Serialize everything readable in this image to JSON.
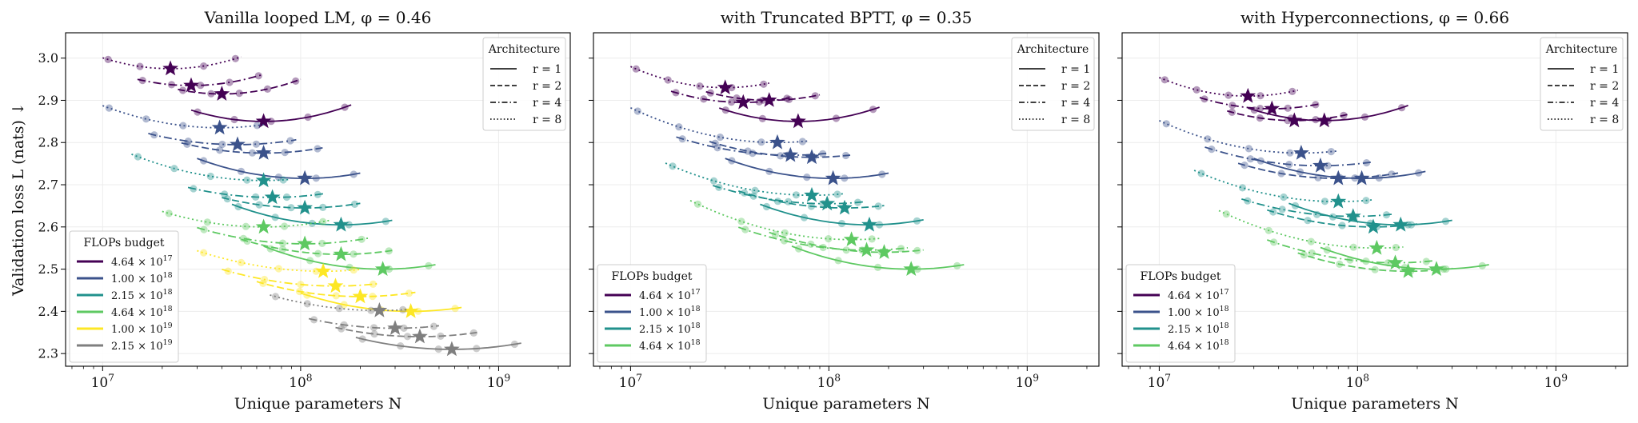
{
  "chart_data": {
    "type": "scatter",
    "ylabel": "Validation loss L (nats) ↓",
    "xlabel": "Unique parameters N",
    "xscale": "log",
    "xlim": [
      6500000,
      2300000000
    ],
    "ylim": [
      2.27,
      3.06
    ],
    "xticks": [
      {
        "value": 10000000,
        "base": "10",
        "exp": "7"
      },
      {
        "value": 100000000,
        "base": "10",
        "exp": "8"
      },
      {
        "value": 1000000000,
        "base": "10",
        "exp": "9"
      }
    ],
    "yticks": [
      2.3,
      2.4,
      2.5,
      2.6,
      2.7,
      2.8,
      2.9,
      3.0
    ],
    "ytick_labels": [
      "2.3",
      "2.4",
      "2.5",
      "2.6",
      "2.7",
      "2.8",
      "2.9",
      "3.0"
    ],
    "budget_colors": [
      "#440154",
      "#3b528b",
      "#21918c",
      "#5ec962",
      "#fde725",
      "#7f7f7f"
    ],
    "architecture_legend": {
      "title": "Architecture",
      "entries": [
        {
          "label": "r = 1",
          "style": "solid"
        },
        {
          "label": "r = 2",
          "style": "dashed"
        },
        {
          "label": "r = 4",
          "style": "dashdot"
        },
        {
          "label": "r = 8",
          "style": "dotted"
        }
      ]
    },
    "budget_legend_title": "FLOPs budget",
    "budget_labels": [
      {
        "mant": "4.64",
        "exp": "17"
      },
      {
        "mant": "1.00",
        "exp": "18"
      },
      {
        "mant": "2.15",
        "exp": "18"
      },
      {
        "mant": "4.64",
        "exp": "18"
      },
      {
        "mant": "1.00",
        "exp": "19"
      },
      {
        "mant": "2.15",
        "exp": "19"
      }
    ],
    "panels": [
      {
        "title": "Vanilla looped LM, φ = 0.46",
        "budget_count": 6,
        "series": [
          {
            "budget": 0,
            "r": 1,
            "x0": 28000000.0,
            "x1": 180000000.0,
            "opt_x": 65000000.0,
            "opt_y": 2.85,
            "k": 0.2
          },
          {
            "budget": 0,
            "r": 2,
            "x0": 24000000.0,
            "x1": 100000000.0,
            "opt_x": 40000000.0,
            "opt_y": 2.915,
            "k": 0.22
          },
          {
            "budget": 0,
            "r": 4,
            "x0": 15000000.0,
            "x1": 65000000.0,
            "opt_x": 28000000.0,
            "opt_y": 2.935,
            "k": 0.2
          },
          {
            "budget": 0,
            "r": 8,
            "x0": 10000000.0,
            "x1": 50000000.0,
            "opt_x": 22000000.0,
            "opt_y": 2.975,
            "k": 0.22
          },
          {
            "budget": 1,
            "r": 1,
            "x0": 30000000.0,
            "x1": 200000000.0,
            "opt_x": 105000000.0,
            "opt_y": 2.715,
            "k": 0.16
          },
          {
            "budget": 1,
            "r": 2,
            "x0": 25000000.0,
            "x1": 130000000.0,
            "opt_x": 65000000.0,
            "opt_y": 2.775,
            "k": 0.14
          },
          {
            "budget": 1,
            "r": 4,
            "x0": 17000000.0,
            "x1": 95000000.0,
            "opt_x": 48000000.0,
            "opt_y": 2.795,
            "k": 0.13
          },
          {
            "budget": 1,
            "r": 8,
            "x0": 10000000.0,
            "x1": 65000000.0,
            "opt_x": 39000000.0,
            "opt_y": 2.835,
            "k": 0.15
          },
          {
            "budget": 2,
            "r": 1,
            "x0": 45000000.0,
            "x1": 290000000.0,
            "opt_x": 160000000.0,
            "opt_y": 2.605,
            "k": 0.16
          },
          {
            "budget": 2,
            "r": 2,
            "x0": 40000000.0,
            "x1": 200000000.0,
            "opt_x": 105000000.0,
            "opt_y": 2.645,
            "k": 0.14
          },
          {
            "budget": 2,
            "r": 4,
            "x0": 27000000.0,
            "x1": 130000000.0,
            "opt_x": 72000000.0,
            "opt_y": 2.67,
            "k": 0.13
          },
          {
            "budget": 2,
            "r": 8,
            "x0": 14000000.0,
            "x1": 88000000.0,
            "opt_x": 65000000.0,
            "opt_y": 2.71,
            "k": 0.14
          },
          {
            "budget": 3,
            "r": 1,
            "x0": 65000000.0,
            "x1": 480000000.0,
            "opt_x": 260000000.0,
            "opt_y": 2.5,
            "k": 0.15
          },
          {
            "budget": 3,
            "r": 2,
            "x0": 50000000.0,
            "x1": 300000000.0,
            "opt_x": 160000000.0,
            "opt_y": 2.535,
            "k": 0.14
          },
          {
            "budget": 3,
            "r": 4,
            "x0": 30000000.0,
            "x1": 220000000.0,
            "opt_x": 105000000.0,
            "opt_y": 2.56,
            "k": 0.13
          },
          {
            "budget": 3,
            "r": 8,
            "x0": 20000000.0,
            "x1": 140000000.0,
            "opt_x": 65000000.0,
            "opt_y": 2.6,
            "k": 0.14
          },
          {
            "budget": 4,
            "r": 1,
            "x0": 100000000.0,
            "x1": 650000000.0,
            "opt_x": 360000000.0,
            "opt_y": 2.4,
            "k": 0.14
          },
          {
            "budget": 4,
            "r": 2,
            "x0": 60000000.0,
            "x1": 380000000.0,
            "opt_x": 200000000.0,
            "opt_y": 2.435,
            "k": 0.13
          },
          {
            "budget": 4,
            "r": 4,
            "x0": 40000000.0,
            "x1": 250000000.0,
            "opt_x": 150000000.0,
            "opt_y": 2.46,
            "k": 0.12
          },
          {
            "budget": 4,
            "r": 8,
            "x0": 30000000.0,
            "x1": 200000000.0,
            "opt_x": 130000000.0,
            "opt_y": 2.495,
            "k": 0.12
          },
          {
            "budget": 5,
            "r": 1,
            "x0": 190000000.0,
            "x1": 1300000000.0,
            "opt_x": 580000000.0,
            "opt_y": 2.31,
            "k": 0.12
          },
          {
            "budget": 5,
            "r": 2,
            "x0": 150000000.0,
            "x1": 800000000.0,
            "opt_x": 400000000.0,
            "opt_y": 2.34,
            "k": 0.12
          },
          {
            "budget": 5,
            "r": 4,
            "x0": 110000000.0,
            "x1": 500000000.0,
            "opt_x": 300000000.0,
            "opt_y": 2.36,
            "k": 0.12
          },
          {
            "budget": 5,
            "r": 8,
            "x0": 70000000.0,
            "x1": 350000000.0,
            "opt_x": 250000000.0,
            "opt_y": 2.402,
            "k": 0.12
          }
        ]
      },
      {
        "title": "with Truncated BPTT, φ = 0.35",
        "budget_count": 4,
        "series": [
          {
            "budget": 0,
            "r": 1,
            "x0": 28000000.0,
            "x1": 180000000.0,
            "opt_x": 70000000.0,
            "opt_y": 2.85,
            "k": 0.2
          },
          {
            "budget": 0,
            "r": 2,
            "x0": 24000000.0,
            "x1": 90000000.0,
            "opt_x": 50000000.0,
            "opt_y": 2.9,
            "k": 0.2
          },
          {
            "budget": 0,
            "r": 4,
            "x0": 16000000.0,
            "x1": 65000000.0,
            "opt_x": 37000000.0,
            "opt_y": 2.895,
            "k": 0.2
          },
          {
            "budget": 0,
            "r": 8,
            "x0": 10000000.0,
            "x1": 50000000.0,
            "opt_x": 30000000.0,
            "opt_y": 2.93,
            "k": 0.22
          },
          {
            "budget": 1,
            "r": 1,
            "x0": 30000000.0,
            "x1": 200000000.0,
            "opt_x": 105000000.0,
            "opt_y": 2.715,
            "k": 0.16
          },
          {
            "budget": 1,
            "r": 2,
            "x0": 25000000.0,
            "x1": 130000000.0,
            "opt_x": 82000000.0,
            "opt_y": 2.765,
            "k": 0.14
          },
          {
            "budget": 1,
            "r": 4,
            "x0": 17000000.0,
            "x1": 100000000.0,
            "opt_x": 64000000.0,
            "opt_y": 2.77,
            "k": 0.13
          },
          {
            "budget": 1,
            "r": 8,
            "x0": 10000000.0,
            "x1": 80000000.0,
            "opt_x": 55000000.0,
            "opt_y": 2.8,
            "k": 0.15
          },
          {
            "budget": 2,
            "r": 1,
            "x0": 45000000.0,
            "x1": 300000000.0,
            "opt_x": 160000000.0,
            "opt_y": 2.605,
            "k": 0.16
          },
          {
            "budget": 2,
            "r": 2,
            "x0": 35000000.0,
            "x1": 190000000.0,
            "opt_x": 120000000.0,
            "opt_y": 2.645,
            "k": 0.14
          },
          {
            "budget": 2,
            "r": 4,
            "x0": 26000000.0,
            "x1": 150000000.0,
            "opt_x": 98000000.0,
            "opt_y": 2.655,
            "k": 0.13
          },
          {
            "budget": 2,
            "r": 8,
            "x0": 15000000.0,
            "x1": 120000000.0,
            "opt_x": 82000000.0,
            "opt_y": 2.675,
            "k": 0.14
          },
          {
            "budget": 3,
            "r": 1,
            "x0": 65000000.0,
            "x1": 480000000.0,
            "opt_x": 260000000.0,
            "opt_y": 2.5,
            "k": 0.15
          },
          {
            "budget": 3,
            "r": 2,
            "x0": 50000000.0,
            "x1": 300000000.0,
            "opt_x": 190000000.0,
            "opt_y": 2.54,
            "k": 0.14
          },
          {
            "budget": 3,
            "r": 4,
            "x0": 35000000.0,
            "x1": 250000000.0,
            "opt_x": 155000000.0,
            "opt_y": 2.545,
            "k": 0.13
          },
          {
            "budget": 3,
            "r": 8,
            "x0": 20000000.0,
            "x1": 180000000.0,
            "opt_x": 130000000.0,
            "opt_y": 2.57,
            "k": 0.14
          }
        ]
      },
      {
        "title": "with Hyperconnections, φ = 0.66",
        "budget_count": 4,
        "series": [
          {
            "budget": 0,
            "r": 1,
            "x0": 28000000.0,
            "x1": 180000000.0,
            "opt_x": 68000000.0,
            "opt_y": 2.852,
            "k": 0.2
          },
          {
            "budget": 0,
            "r": 2,
            "x0": 22000000.0,
            "x1": 90000000.0,
            "opt_x": 48000000.0,
            "opt_y": 2.852,
            "k": 0.2
          },
          {
            "budget": 0,
            "r": 4,
            "x0": 16000000.0,
            "x1": 65000000.0,
            "opt_x": 37000000.0,
            "opt_y": 2.88,
            "k": 0.2
          },
          {
            "budget": 0,
            "r": 8,
            "x0": 10000000.0,
            "x1": 50000000.0,
            "opt_x": 28000000.0,
            "opt_y": 2.91,
            "k": 0.22
          },
          {
            "budget": 1,
            "r": 1,
            "x0": 30000000.0,
            "x1": 220000000.0,
            "opt_x": 105000000.0,
            "opt_y": 2.715,
            "k": 0.16
          },
          {
            "budget": 1,
            "r": 2,
            "x0": 25000000.0,
            "x1": 160000000.0,
            "opt_x": 80000000.0,
            "opt_y": 2.715,
            "k": 0.14
          },
          {
            "budget": 1,
            "r": 4,
            "x0": 17000000.0,
            "x1": 120000000.0,
            "opt_x": 65000000.0,
            "opt_y": 2.745,
            "k": 0.13
          },
          {
            "budget": 1,
            "r": 8,
            "x0": 10000000.0,
            "x1": 80000000.0,
            "opt_x": 52000000.0,
            "opt_y": 2.775,
            "k": 0.15
          },
          {
            "budget": 2,
            "r": 1,
            "x0": 45000000.0,
            "x1": 300000000.0,
            "opt_x": 165000000.0,
            "opt_y": 2.605,
            "k": 0.16
          },
          {
            "budget": 2,
            "r": 2,
            "x0": 35000000.0,
            "x1": 200000000.0,
            "opt_x": 120000000.0,
            "opt_y": 2.6,
            "k": 0.14
          },
          {
            "budget": 2,
            "r": 4,
            "x0": 26000000.0,
            "x1": 150000000.0,
            "opt_x": 95000000.0,
            "opt_y": 2.625,
            "k": 0.13
          },
          {
            "budget": 2,
            "r": 8,
            "x0": 15000000.0,
            "x1": 120000000.0,
            "opt_x": 80000000.0,
            "opt_y": 2.66,
            "k": 0.14
          },
          {
            "budget": 3,
            "r": 1,
            "x0": 65000000.0,
            "x1": 460000000.0,
            "opt_x": 250000000.0,
            "opt_y": 2.5,
            "k": 0.15
          },
          {
            "budget": 3,
            "r": 2,
            "x0": 50000000.0,
            "x1": 300000000.0,
            "opt_x": 180000000.0,
            "opt_y": 2.495,
            "k": 0.14
          },
          {
            "budget": 3,
            "r": 4,
            "x0": 35000000.0,
            "x1": 240000000.0,
            "opt_x": 155000000.0,
            "opt_y": 2.515,
            "k": 0.13
          },
          {
            "budget": 3,
            "r": 8,
            "x0": 20000000.0,
            "x1": 170000000.0,
            "opt_x": 125000000.0,
            "opt_y": 2.55,
            "k": 0.14
          }
        ]
      }
    ]
  }
}
